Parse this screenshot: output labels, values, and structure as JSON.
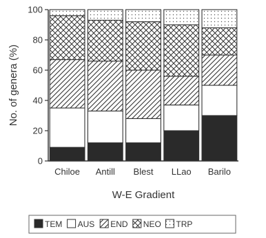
{
  "chart_data": {
    "type": "bar",
    "stacked": true,
    "categories": [
      "Chiloe",
      "Antill",
      "Blest",
      "LLao",
      "Barilo"
    ],
    "series": [
      {
        "name": "TEM",
        "values": [
          9,
          12,
          12,
          20,
          30
        ],
        "pattern": "solid",
        "color": "#2a2a2a"
      },
      {
        "name": "AUS",
        "values": [
          26,
          21,
          16,
          17,
          20
        ],
        "pattern": "blank",
        "color": "#ffffff"
      },
      {
        "name": "END",
        "values": [
          32,
          33,
          32,
          19,
          20
        ],
        "pattern": "diagonal",
        "color": "#333333"
      },
      {
        "name": "NEO",
        "values": [
          29,
          27,
          32,
          34,
          18
        ],
        "pattern": "crosshatch",
        "color": "#333333"
      },
      {
        "name": "TRP",
        "values": [
          4,
          7,
          8,
          10,
          12
        ],
        "pattern": "dots",
        "color": "#555555"
      }
    ],
    "xlabel": "W-E Gradient",
    "ylabel": "No. of genera (%)",
    "ylim": [
      0,
      100
    ],
    "yticks": [
      0,
      20,
      40,
      60,
      80,
      100
    ],
    "legend": "bottom",
    "grid": false
  }
}
